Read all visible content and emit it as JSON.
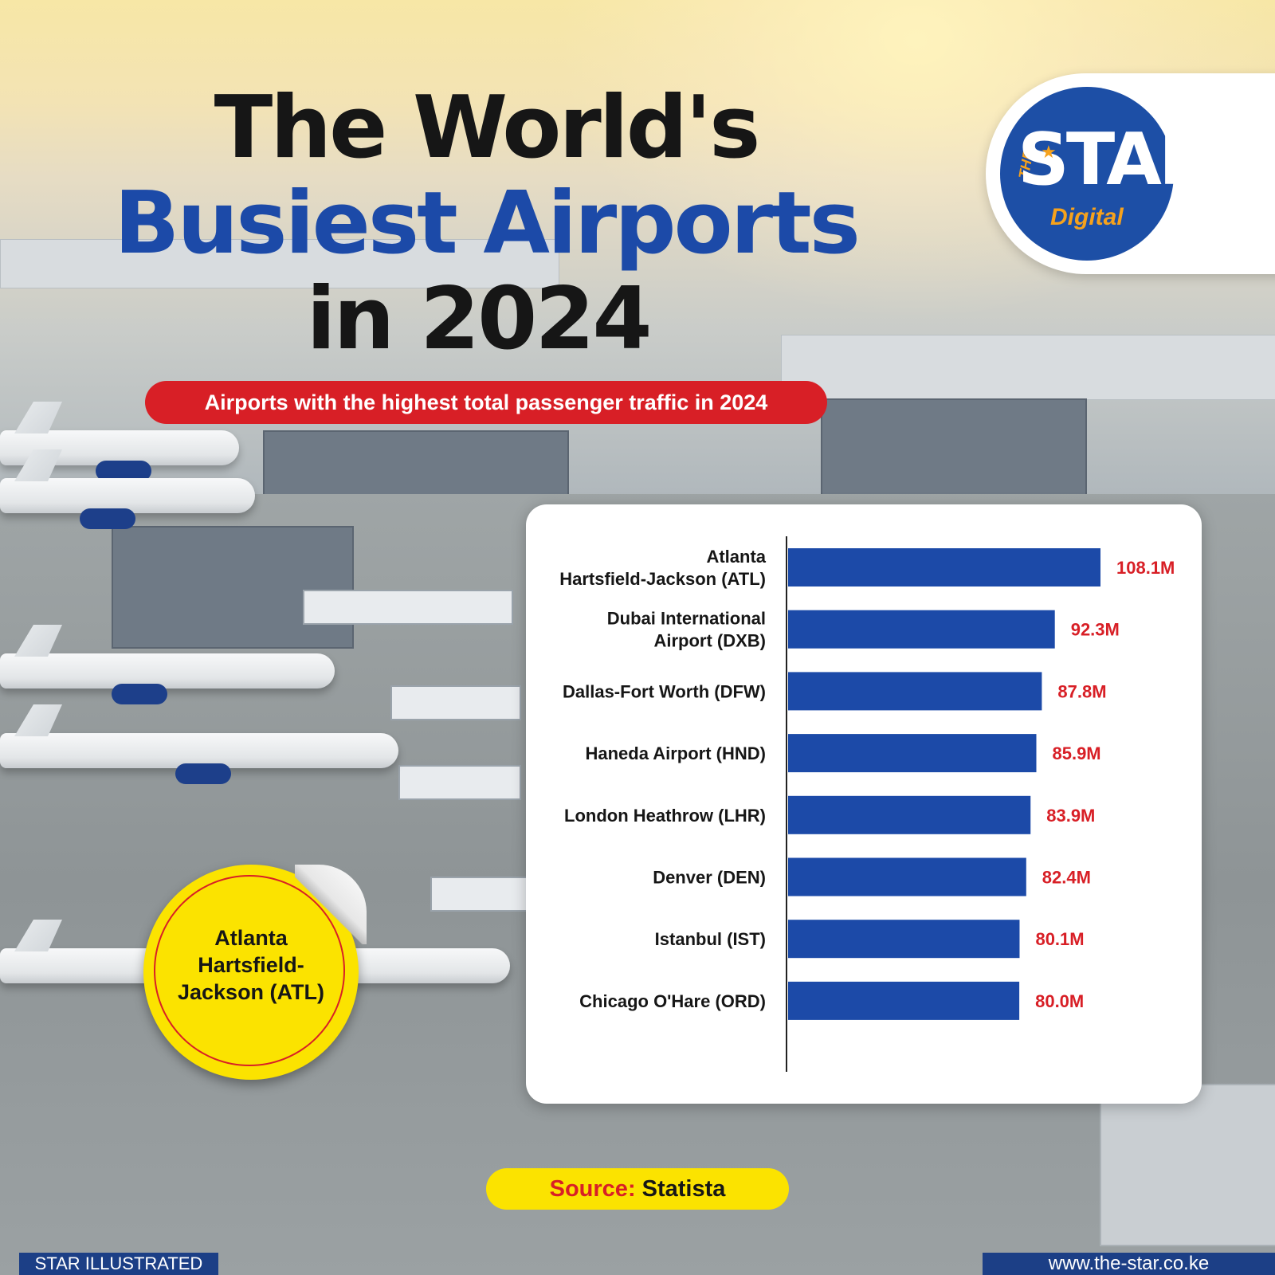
{
  "header": {
    "title_line1": "The World's",
    "title_line2": "Busiest Airports",
    "title_line3": "in 2024",
    "subtitle": "Airports with the highest total passenger traffic in 2024"
  },
  "logo": {
    "the": "THE",
    "star": "STAR",
    "digital": "Digital"
  },
  "sticker": {
    "text_line1": "Atlanta",
    "text_line2": "Hartsfield-",
    "text_line3": "Jackson (ATL)"
  },
  "source": {
    "label": "Source:",
    "value": "Statista"
  },
  "footer": {
    "left": "STAR ILLUSTRATED",
    "right": "www.the-star.co.ke"
  },
  "colors": {
    "bar": "#1c4aa8",
    "value_label": "#d81f26",
    "title_blue": "#1c4aa8",
    "subtitle_red": "#d81f26",
    "sticker_yellow": "#fbe300"
  },
  "icons": [
    "star-icon"
  ],
  "chart_data": {
    "type": "bar",
    "orientation": "horizontal",
    "title": "The World's Busiest Airports in 2024",
    "subtitle": "Airports with the highest total passenger traffic in 2024",
    "categories": [
      [
        "Atlanta",
        "Hartsfield-Jackson (ATL)"
      ],
      [
        "Dubai International",
        "Airport (DXB)"
      ],
      [
        "Dallas-Fort Worth (DFW)"
      ],
      [
        "Haneda Airport (HND)"
      ],
      [
        "London Heathrow (LHR)"
      ],
      [
        "Denver (DEN)"
      ],
      [
        "Istanbul (IST)"
      ],
      [
        "Chicago O'Hare (ORD)"
      ]
    ],
    "values": [
      108.1,
      92.3,
      87.8,
      85.9,
      83.9,
      82.4,
      80.1,
      80.0
    ],
    "value_labels": [
      "108.1M",
      "92.3M",
      "87.8M",
      "85.9M",
      "83.9M",
      "82.4M",
      "80.1M",
      "80.0M"
    ],
    "unit": "M",
    "xlim": [
      0,
      108.1
    ],
    "grid": false,
    "legend": "none"
  }
}
